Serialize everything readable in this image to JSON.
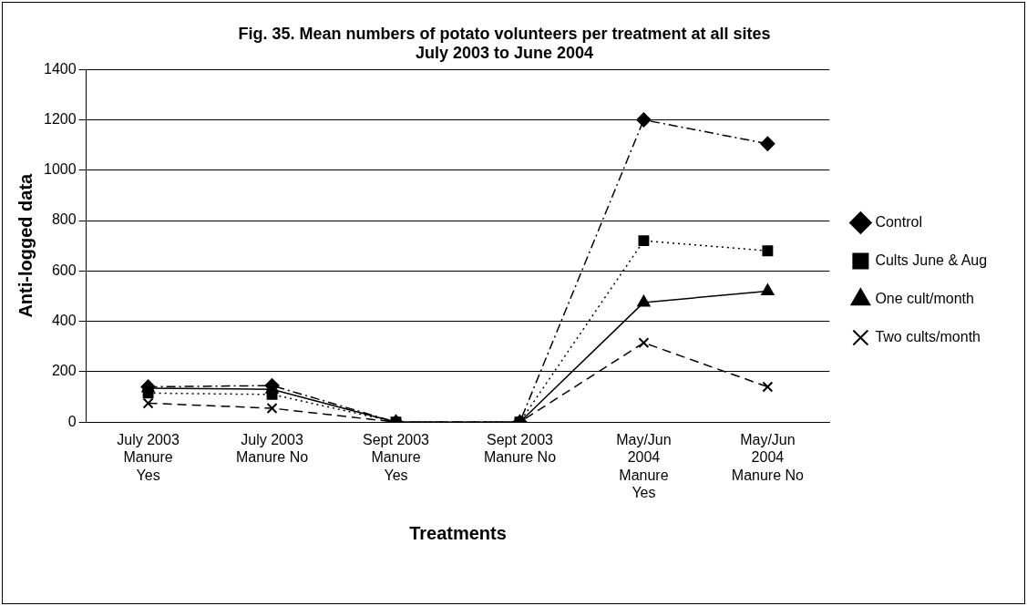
{
  "chart_data": {
    "type": "line",
    "title": "Fig. 35. Mean numbers of potato volunteers per treatment at all sites",
    "subtitle": "July 2003 to June 2004",
    "xlabel": "Treatments",
    "ylabel": "Anti-logged data",
    "categories": [
      "July 2003 Manure Yes",
      "July 2003 Manure No",
      "Sept 2003 Manure Yes",
      "Sept 2003 Manure No",
      "May/Jun 2004 Manure Yes",
      "May/Jun 2004 Manure No"
    ],
    "series": [
      {
        "name": "Control",
        "color": "#000000",
        "marker": "diamond",
        "line_style": "dashdot",
        "values": [
          140,
          145,
          0,
          0,
          1200,
          1105
        ]
      },
      {
        "name": "Cults June & Aug",
        "color": "#000000",
        "marker": "square",
        "line_style": "dotted",
        "values": [
          115,
          110,
          0,
          0,
          720,
          680
        ]
      },
      {
        "name": "One cult/month",
        "color": "#000000",
        "marker": "triangle",
        "line_style": "solid",
        "values": [
          135,
          130,
          0,
          0,
          475,
          520
        ]
      },
      {
        "name": "Two cults/month",
        "color": "#000000",
        "marker": "cross",
        "line_style": "dashed",
        "values": [
          75,
          55,
          0,
          0,
          315,
          140
        ]
      }
    ],
    "ylim": [
      0,
      1400
    ],
    "yticks": [
      0,
      200,
      400,
      600,
      800,
      1000,
      1200,
      1400
    ],
    "grid": "y",
    "legend": "right"
  }
}
